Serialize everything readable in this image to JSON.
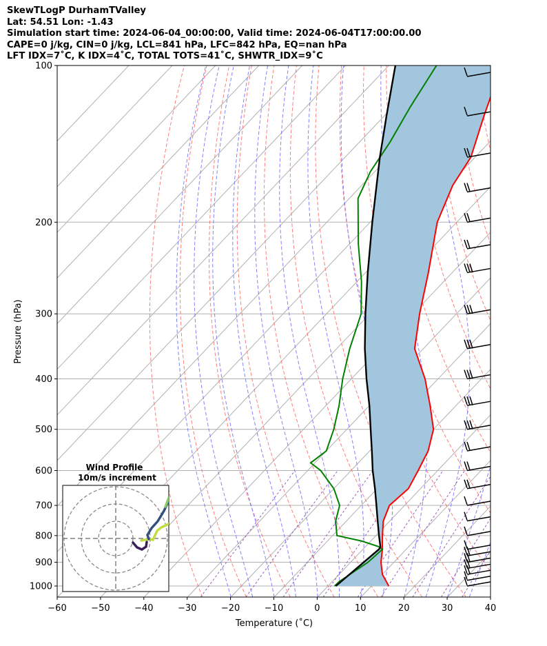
{
  "header": {
    "line1": "SkewTLogP DurhamTValley",
    "line2": "Lat: 54.51   Lon: -1.43",
    "line3": "Simulation start time: 2024-06-04_00:00:00, Valid time: 2024-06-04T17:00:00.00",
    "line4": "CAPE=0 j/kg, CIN=0 j/kg, LCL=841 hPa, LFC=842 hPa, EQ=nan hPa",
    "line5": "LFT IDX=7$^\\circ$C, K IDX=4$^\\circ$C, TOTAL TOTS=41$^\\circ$C, SHWTR_IDX=9$^\\circ$C"
  },
  "header_display": {
    "line5": "LFT IDX=7˚C, K IDX=4˚C, TOTAL TOTS=41˚C, SHWTR_IDX=9˚C"
  },
  "chart_data": {
    "type": "line",
    "subtype": "skew-t log-p",
    "xlabel": "Temperature (˚C)",
    "ylabel": "Pressure (hPa)",
    "xlim": [
      -60,
      40
    ],
    "ylim": [
      1050,
      100
    ],
    "x_ticks": [
      -60,
      -50,
      -40,
      -30,
      -20,
      -10,
      0,
      10,
      20,
      30,
      40
    ],
    "x_tick_labels": [
      "−60",
      "−50",
      "−40",
      "−30",
      "−20",
      "−10",
      "0",
      "10",
      "20",
      "30",
      "40"
    ],
    "y_ticks": [
      1000,
      900,
      800,
      700,
      600,
      500,
      400,
      300,
      200,
      100
    ],
    "y_scale": "log",
    "grid": true,
    "colors": {
      "temperature": "#ff0000",
      "dewpoint": "#008000",
      "parcel": "#000000",
      "cape_fill": "#a3c6df",
      "dry_adiabats": "#ff6666",
      "moist_adiabats": "#6b6bff",
      "mixing_ratio": "#9b59b6",
      "isotherms": "#b0b0b0"
    },
    "series": [
      {
        "id": "temperature",
        "points": [
          [
            1000,
            14
          ],
          [
            950,
            10
          ],
          [
            900,
            7
          ],
          [
            850,
            4.5
          ],
          [
            800,
            1.5
          ],
          [
            750,
            -1.5
          ],
          [
            700,
            -3.5
          ],
          [
            650,
            -2.8
          ],
          [
            600,
            -4.5
          ],
          [
            550,
            -6.5
          ],
          [
            500,
            -10
          ],
          [
            450,
            -16
          ],
          [
            400,
            -23
          ],
          [
            350,
            -32
          ],
          [
            300,
            -38.5
          ],
          [
            250,
            -45.5
          ],
          [
            200,
            -54.5
          ],
          [
            170,
            -59
          ],
          [
            150,
            -61
          ],
          [
            125,
            -67
          ],
          [
            110,
            -71
          ],
          [
            100,
            -73
          ]
        ]
      },
      {
        "id": "dewpoint",
        "points": [
          [
            1000,
            1.5
          ],
          [
            980,
            1.6
          ],
          [
            900,
            4
          ],
          [
            850,
            4.5
          ],
          [
            840,
            3
          ],
          [
            820,
            -2
          ],
          [
            800,
            -9
          ],
          [
            750,
            -12.5
          ],
          [
            700,
            -15
          ],
          [
            650,
            -20
          ],
          [
            600,
            -27
          ],
          [
            580,
            -31
          ],
          [
            550,
            -30
          ],
          [
            500,
            -33
          ],
          [
            450,
            -37
          ],
          [
            400,
            -42
          ],
          [
            350,
            -47
          ],
          [
            300,
            -52
          ],
          [
            260,
            -59
          ],
          [
            220,
            -68
          ],
          [
            180,
            -78
          ],
          [
            160,
            -81
          ],
          [
            140,
            -83
          ],
          [
            120,
            -86
          ],
          [
            100,
            -89
          ]
        ]
      },
      {
        "id": "parcel",
        "points": [
          [
            1000,
            1.8
          ],
          [
            850,
            3.7
          ],
          [
            841,
            3.5
          ],
          [
            800,
            0.7
          ],
          [
            750,
            -2.8
          ],
          [
            700,
            -6.5
          ],
          [
            650,
            -10.5
          ],
          [
            600,
            -15
          ],
          [
            550,
            -19.5
          ],
          [
            500,
            -24.5
          ],
          [
            450,
            -30
          ],
          [
            400,
            -36.5
          ],
          [
            350,
            -43.5
          ],
          [
            300,
            -51
          ],
          [
            250,
            -59.5
          ],
          [
            200,
            -69.5
          ],
          [
            150,
            -82
          ],
          [
            125,
            -89.5
          ],
          [
            100,
            -98.5
          ]
        ]
      }
    ],
    "wind_barbs": {
      "pressures": [
        1000,
        975,
        950,
        925,
        900,
        875,
        850,
        800,
        750,
        700,
        650,
        600,
        550,
        500,
        450,
        400,
        350,
        300,
        250,
        225,
        200,
        175,
        150,
        125,
        105
      ],
      "flags": [
        1,
        1,
        2,
        2,
        2,
        2,
        1,
        1,
        1,
        1,
        2,
        2,
        2,
        3,
        3,
        3,
        3,
        3,
        3,
        2,
        2,
        2,
        2,
        1,
        1
      ]
    }
  },
  "wind_profile": {
    "title": "Wind Profile",
    "subtitle": "10m/s increment",
    "colors": [
      "#3b1d57",
      "#c4dc41",
      "#36507e",
      "#8ccb66"
    ]
  }
}
